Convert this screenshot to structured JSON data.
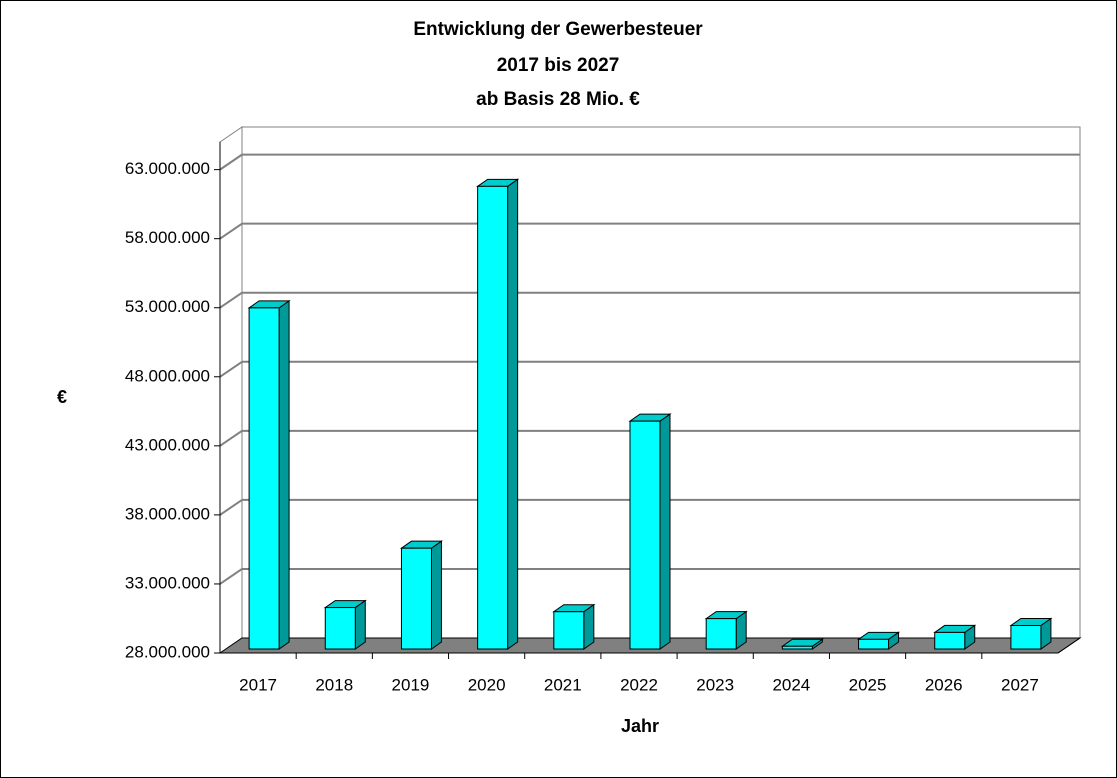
{
  "chart_data": {
    "type": "bar",
    "title": [
      "Entwicklung  der Gewerbesteuer",
      "2017 bis 2027",
      "ab Basis 28 Mio. €"
    ],
    "x_label": "Jahr",
    "y_label": "€",
    "categories": [
      "2017",
      "2018",
      "2019",
      "2020",
      "2021",
      "2022",
      "2023",
      "2024",
      "2025",
      "2026",
      "2027"
    ],
    "values": [
      52700000,
      31000000,
      35300000,
      61500000,
      30700000,
      44500000,
      30200000,
      28200000,
      28700000,
      29200000,
      29700000
    ],
    "color": "#00ffff",
    "ylim": [
      28000000,
      65000000
    ],
    "yticks": [
      {
        "value": 28000000,
        "label": "28.000.000"
      },
      {
        "value": 33000000,
        "label": "33.000.000"
      },
      {
        "value": 38000000,
        "label": "38.000.000"
      },
      {
        "value": 43000000,
        "label": "43.000.000"
      },
      {
        "value": 48000000,
        "label": "48.000.000"
      },
      {
        "value": 53000000,
        "label": "53.000.000"
      },
      {
        "value": 58000000,
        "label": "58.000.000"
      },
      {
        "value": 63000000,
        "label": "63.000.000"
      }
    ],
    "grid": true
  }
}
